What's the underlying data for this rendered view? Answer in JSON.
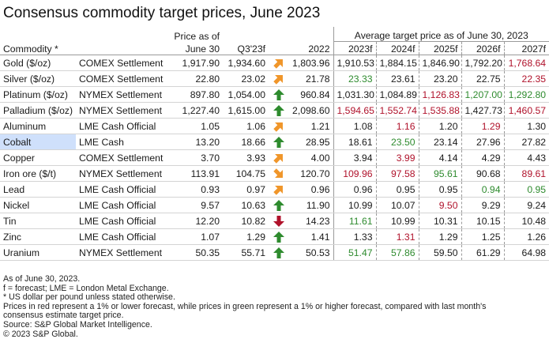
{
  "title": "Consensus commodity target prices, June 2023",
  "headers": {
    "commodity": "Commodity *",
    "price_line1": "Price as of",
    "price_line2": "June  30",
    "q3": "Q3'23f",
    "y2022": "2022",
    "avg": "Average target price as of June  30, 2023",
    "y2023": "2023f",
    "y2024": "2024f",
    "y2025": "2025f",
    "y2026": "2026f",
    "y2027": "2027f"
  },
  "colors": {
    "up": "#2e8b2e",
    "down": "#b0122b",
    "side": "#f0962a",
    "highlight": "#cfe0fb"
  },
  "rows": [
    {
      "name": "Gold ($/oz)",
      "source": "COMEX Settlement",
      "price": "1,917.90",
      "q3": "1,934.60",
      "arrow": "diag-up",
      "y2022": "1,803.96",
      "f": [
        {
          "v": "1,910.53",
          "c": ""
        },
        {
          "v": "1,884.15",
          "c": ""
        },
        {
          "v": "1,846.90",
          "c": ""
        },
        {
          "v": "1,792.20",
          "c": ""
        },
        {
          "v": "1,768.64",
          "c": "red"
        }
      ]
    },
    {
      "name": "Silver ($/oz)",
      "source": "COMEX Settlement",
      "price": "22.80",
      "q3": "23.02",
      "arrow": "diag-up",
      "y2022": "21.78",
      "f": [
        {
          "v": "23.33",
          "c": "green"
        },
        {
          "v": "23.61",
          "c": ""
        },
        {
          "v": "23.20",
          "c": ""
        },
        {
          "v": "22.75",
          "c": ""
        },
        {
          "v": "22.35",
          "c": "red"
        }
      ]
    },
    {
      "name": "Platinum ($/oz)",
      "source": "NYMEX Settlement",
      "price": "897.80",
      "q3": "1,054.00",
      "arrow": "up",
      "y2022": "960.84",
      "f": [
        {
          "v": "1,031.30",
          "c": ""
        },
        {
          "v": "1,084.89",
          "c": ""
        },
        {
          "v": "1,126.83",
          "c": "red"
        },
        {
          "v": "1,207.00",
          "c": "green"
        },
        {
          "v": "1,292.80",
          "c": "green"
        }
      ]
    },
    {
      "name": "Palladium ($/oz)",
      "source": "NYMEX Settlement",
      "price": "1,227.40",
      "q3": "1,615.00",
      "arrow": "up",
      "y2022": "2,098.60",
      "f": [
        {
          "v": "1,594.65",
          "c": "red"
        },
        {
          "v": "1,552.74",
          "c": "red"
        },
        {
          "v": "1,535.88",
          "c": "red"
        },
        {
          "v": "1,427.73",
          "c": ""
        },
        {
          "v": "1,460.57",
          "c": "red"
        }
      ]
    },
    {
      "name": "Aluminum",
      "source": "LME Cash Official",
      "price": "1.05",
      "q3": "1.06",
      "arrow": "diag-up",
      "y2022": "1.21",
      "f": [
        {
          "v": "1.08",
          "c": ""
        },
        {
          "v": "1.16",
          "c": "red"
        },
        {
          "v": "1.20",
          "c": ""
        },
        {
          "v": "1.29",
          "c": "red"
        },
        {
          "v": "1.30",
          "c": ""
        }
      ]
    },
    {
      "name": "Cobalt",
      "source": "LME Cash",
      "price": "13.20",
      "q3": "18.66",
      "arrow": "up",
      "y2022": "28.95",
      "highlight": true,
      "f": [
        {
          "v": "18.61",
          "c": ""
        },
        {
          "v": "23.50",
          "c": "green"
        },
        {
          "v": "23.14",
          "c": ""
        },
        {
          "v": "27.96",
          "c": ""
        },
        {
          "v": "27.82",
          "c": ""
        }
      ]
    },
    {
      "name": "Copper",
      "source": "COMEX Settlement",
      "price": "3.70",
      "q3": "3.93",
      "arrow": "diag-up",
      "y2022": "4.00",
      "f": [
        {
          "v": "3.94",
          "c": ""
        },
        {
          "v": "3.99",
          "c": "red"
        },
        {
          "v": "4.14",
          "c": ""
        },
        {
          "v": "4.29",
          "c": ""
        },
        {
          "v": "4.43",
          "c": ""
        }
      ]
    },
    {
      "name": "Iron ore ($/t)",
      "source": "NYMEX Settlement",
      "price": "113.91",
      "q3": "104.75",
      "arrow": "diag-down",
      "y2022": "120.70",
      "f": [
        {
          "v": "109.96",
          "c": "red"
        },
        {
          "v": "97.58",
          "c": "red"
        },
        {
          "v": "95.61",
          "c": "green"
        },
        {
          "v": "90.68",
          "c": ""
        },
        {
          "v": "89.61",
          "c": "red"
        }
      ]
    },
    {
      "name": "Lead",
      "source": "LME Cash Official",
      "price": "0.93",
      "q3": "0.97",
      "arrow": "diag-up",
      "y2022": "0.96",
      "f": [
        {
          "v": "0.96",
          "c": ""
        },
        {
          "v": "0.95",
          "c": ""
        },
        {
          "v": "0.95",
          "c": ""
        },
        {
          "v": "0.94",
          "c": "green"
        },
        {
          "v": "0.95",
          "c": "green"
        }
      ]
    },
    {
      "name": "Nickel",
      "source": "LME Cash Official",
      "price": "9.57",
      "q3": "10.63",
      "arrow": "up",
      "y2022": "11.90",
      "f": [
        {
          "v": "10.99",
          "c": ""
        },
        {
          "v": "10.07",
          "c": ""
        },
        {
          "v": "9.50",
          "c": "red"
        },
        {
          "v": "9.29",
          "c": ""
        },
        {
          "v": "9.24",
          "c": ""
        }
      ]
    },
    {
      "name": "Tin",
      "source": "LME Cash Official",
      "price": "12.20",
      "q3": "10.82",
      "arrow": "down",
      "y2022": "14.23",
      "f": [
        {
          "v": "11.61",
          "c": "green"
        },
        {
          "v": "10.99",
          "c": ""
        },
        {
          "v": "10.31",
          "c": ""
        },
        {
          "v": "10.15",
          "c": ""
        },
        {
          "v": "10.48",
          "c": ""
        }
      ]
    },
    {
      "name": "Zinc",
      "source": "LME Cash Official",
      "price": "1.07",
      "q3": "1.29",
      "arrow": "up",
      "y2022": "1.41",
      "f": [
        {
          "v": "1.33",
          "c": ""
        },
        {
          "v": "1.31",
          "c": "red"
        },
        {
          "v": "1.29",
          "c": ""
        },
        {
          "v": "1.25",
          "c": ""
        },
        {
          "v": "1.26",
          "c": ""
        }
      ]
    },
    {
      "name": "Uranium",
      "source": "NYMEX Settlement",
      "price": "50.35",
      "q3": "55.71",
      "arrow": "up",
      "y2022": "50.53",
      "f": [
        {
          "v": "51.47",
          "c": "green"
        },
        {
          "v": "57.86",
          "c": "green"
        },
        {
          "v": "59.50",
          "c": ""
        },
        {
          "v": "61.29",
          "c": ""
        },
        {
          "v": "64.98",
          "c": ""
        }
      ]
    }
  ],
  "notes": [
    "As of June 30, 2023.",
    "f = forecast; LME = London Metal Exchange.",
    "* US dollar per pound unless stated otherwise.",
    "Prices in red represent a 1% or lower forecast, while prices in green represent a 1% or higher forecast, compared with last month's",
    "consensus estimate target price.",
    "Source: S&P Global Market Intelligence.",
    "© 2023 S&P Global."
  ]
}
